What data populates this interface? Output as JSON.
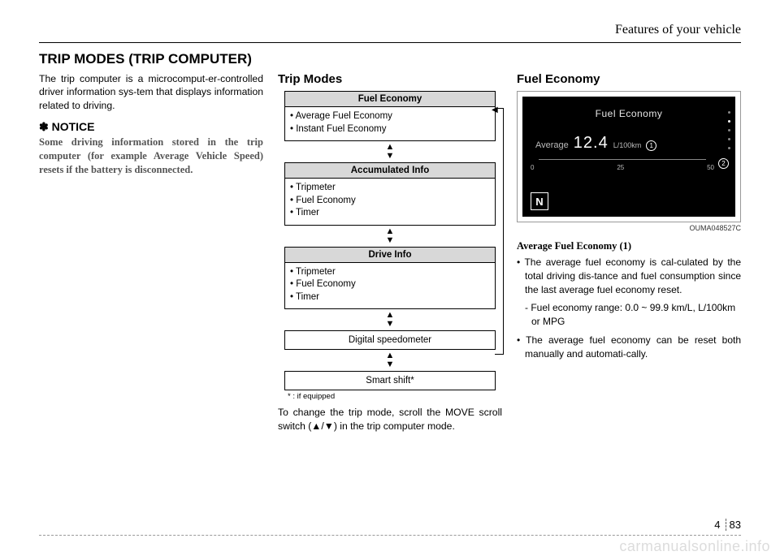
{
  "header": {
    "chapter_title": "Features of your vehicle"
  },
  "title": "TRIP MODES (TRIP COMPUTER)",
  "intro": "The trip computer is a microcomput-er-controlled driver information sys-tem that displays information related to driving.",
  "notice": {
    "mark": "✽ NOTICE",
    "text": "Some driving information stored in the trip computer (for example Average Vehicle Speed) resets if the battery is disconnected."
  },
  "tripmodes": {
    "heading": "Trip Modes",
    "boxes": [
      {
        "head": "Fuel Economy",
        "items": [
          "• Average Fuel Economy",
          "• Instant Fuel Economy"
        ]
      },
      {
        "head": "Accumulated Info",
        "items": [
          "• Tripmeter",
          "• Fuel Economy",
          "• Timer"
        ]
      },
      {
        "head": "Drive Info",
        "items": [
          "• Tripmeter",
          "• Fuel Economy",
          "• Timer"
        ]
      }
    ],
    "single1": "Digital speedometer",
    "single2": "Smart shift*",
    "footnote": "* : if equipped",
    "instr": "To change the trip mode, scroll the MOVE scroll switch (▲/▼) in the trip computer mode."
  },
  "fuel": {
    "heading": "Fuel Economy",
    "display": {
      "title": "Fuel Economy",
      "label": "Average",
      "value": "12.4",
      "unit": "L/100km",
      "ticks": [
        "0",
        "25",
        "50"
      ],
      "gear": "N",
      "badge1": "1",
      "badge2": "2"
    },
    "code": "OUMA048527C",
    "para_title": "Average Fuel Economy (1)",
    "b1": "• The average fuel economy is cal-culated by the total driving dis-tance and fuel consumption since the last average fuel economy reset.",
    "sub1": "- Fuel economy range: 0.0 ~ 99.9 km/L, L/100km or MPG",
    "b2": "• The average fuel economy can be reset both manually and automati-cally."
  },
  "page": {
    "chapter": "4",
    "num": "83"
  },
  "watermark": "carmanualsonline.info"
}
